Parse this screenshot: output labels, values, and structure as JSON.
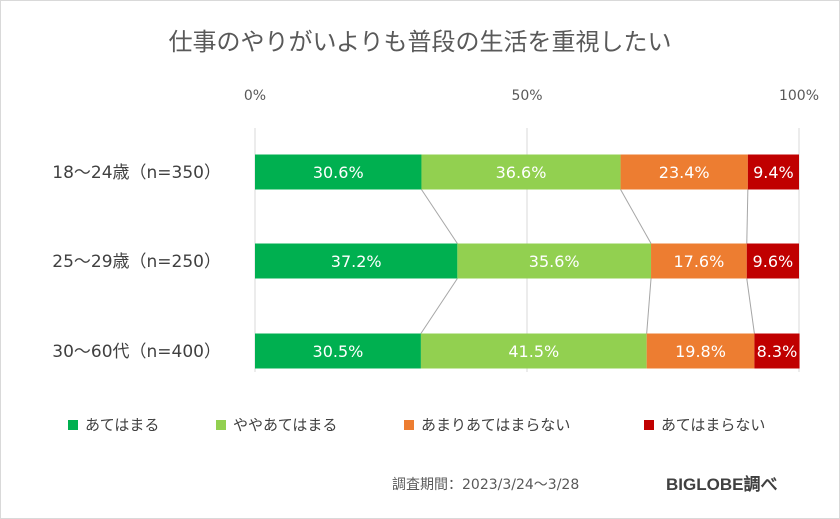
{
  "chart_data": {
    "type": "bar",
    "orientation": "horizontal",
    "stacked": true,
    "percent_stacked": true,
    "title": "仕事のやりがいよりも普段の生活を重視したい",
    "categories": [
      "18～24歳（n=350）",
      "25～29歳（n=250）",
      "30～60代（n=400）"
    ],
    "series": [
      {
        "name": "あてはまる",
        "values": [
          30.6,
          37.2,
          30.5
        ],
        "labels": [
          "30.6%",
          "37.2%",
          "30.5%"
        ],
        "color": "#00b050"
      },
      {
        "name": "ややあてはまる",
        "values": [
          36.6,
          35.6,
          41.5
        ],
        "labels": [
          "36.6%",
          "35.6%",
          "41.5%"
        ],
        "color": "#92d050"
      },
      {
        "name": "あまりあてはまらない",
        "values": [
          23.4,
          17.6,
          19.8
        ],
        "labels": [
          "23.4%",
          "17.6%",
          "19.8%"
        ],
        "color": "#ed7d31"
      },
      {
        "name": "あてはまらない",
        "values": [
          9.4,
          9.6,
          8.3
        ],
        "labels": [
          "9.4%",
          "9.6%",
          "8.3%"
        ],
        "color": "#c00000"
      }
    ],
    "xlim": [
      0,
      100
    ],
    "xticks": [
      0,
      50,
      100
    ],
    "xtick_labels": [
      "0%",
      "50%",
      "100%"
    ],
    "axis_position": "top",
    "grid": true,
    "series_lines": true,
    "legend_position": "bottom"
  },
  "footer": {
    "period": "調査期間：2023/3/24～3/28",
    "brand": "BIGLOBE調べ"
  }
}
